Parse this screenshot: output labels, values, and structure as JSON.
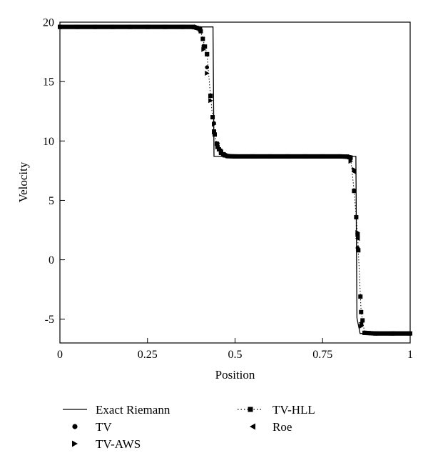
{
  "chart_data": {
    "type": "line",
    "title": "",
    "xlabel": "Position",
    "ylabel": "Velocity",
    "xlim": [
      0,
      1
    ],
    "ylim": [
      -7,
      20
    ],
    "xticks": [
      {
        "value": 0,
        "label": "0"
      },
      {
        "value": 0.25,
        "label": "0.25"
      },
      {
        "value": 0.5,
        "label": "0.5"
      },
      {
        "value": 0.75,
        "label": "0.75"
      },
      {
        "value": 1,
        "label": "1"
      }
    ],
    "yticks": [
      {
        "value": 20,
        "label": "20"
      },
      {
        "value": 15,
        "label": "15"
      },
      {
        "value": 10,
        "label": "10"
      },
      {
        "value": 5,
        "label": "5"
      },
      {
        "value": 0,
        "label": "0"
      },
      {
        "value": -5,
        "label": "-5"
      }
    ],
    "grid": false,
    "legend_position": "bottom",
    "series": [
      {
        "name": "Exact Riemann",
        "style": "solid-line",
        "x": [
          0,
          0.437,
          0.44,
          0.845,
          0.848,
          0.857,
          1
        ],
        "y": [
          19.6,
          19.6,
          8.7,
          8.7,
          -4.9,
          -6.2,
          -6.2
        ]
      },
      {
        "name": "TV",
        "style": "circle",
        "x": [
          0.38,
          0.39,
          0.4,
          0.41,
          0.42,
          0.43,
          0.44,
          0.45,
          0.46,
          0.47,
          0.48,
          0.83,
          0.84,
          0.85,
          0.86,
          0.87
        ],
        "y": [
          19.6,
          19.5,
          19.3,
          18.0,
          16.2,
          13.8,
          11.5,
          9.8,
          9.2,
          8.9,
          8.75,
          8.5,
          7.5,
          1.0,
          -5.5,
          -6.15
        ]
      },
      {
        "name": "TV-AWS",
        "style": "triangle-right",
        "x": [
          0.39,
          0.4,
          0.41,
          0.42,
          0.43,
          0.44,
          0.45,
          0.46,
          0.47,
          0.83,
          0.84,
          0.85,
          0.86
        ],
        "y": [
          19.6,
          19.4,
          17.7,
          15.7,
          13.4,
          11.4,
          9.8,
          9.2,
          8.9,
          8.3,
          7.6,
          2.3,
          -5.6
        ]
      },
      {
        "name": "TV-HLL",
        "style": "dotted-square",
        "x": [
          0,
          0.05,
          0.1,
          0.15,
          0.2,
          0.25,
          0.3,
          0.35,
          0.38,
          0.4,
          0.42,
          0.43,
          0.44,
          0.45,
          0.46,
          0.47,
          0.48,
          0.5,
          0.55,
          0.6,
          0.65,
          0.7,
          0.75,
          0.8,
          0.82,
          0.83,
          0.84,
          0.85,
          0.86,
          0.87,
          0.9,
          0.95,
          1
        ],
        "y": [
          19.6,
          19.6,
          19.6,
          19.6,
          19.6,
          19.6,
          19.6,
          19.6,
          19.6,
          19.45,
          17.3,
          13.8,
          10.8,
          9.5,
          9.0,
          8.8,
          8.72,
          8.7,
          8.7,
          8.7,
          8.7,
          8.7,
          8.7,
          8.7,
          8.68,
          8.6,
          5.8,
          2.1,
          -4.4,
          -6.15,
          -6.2,
          -6.2,
          -6.2
        ]
      },
      {
        "name": "Roe",
        "style": "triangle-left",
        "x": [
          0.44,
          0.45,
          0.46,
          0.84,
          0.85,
          0.86
        ],
        "y": [
          10.6,
          9.4,
          9.0,
          7.4,
          1.8,
          -5.3
        ]
      }
    ]
  }
}
